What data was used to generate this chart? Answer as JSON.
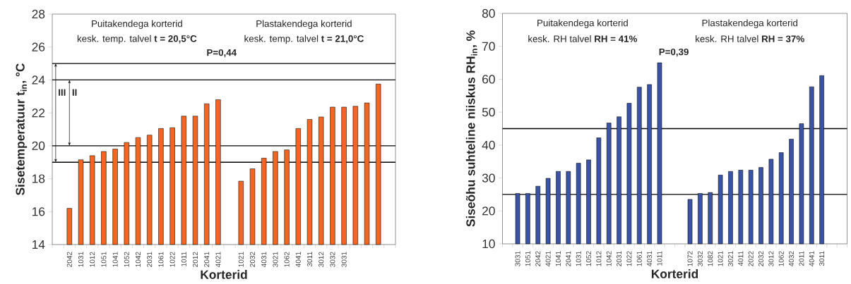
{
  "chart_data": [
    {
      "type": "bar",
      "xlabel": "Korterid",
      "ylabel": "Sisetemperatuur t$_{in}$, °C",
      "color": "#f26522",
      "categories": [
        null,
        "2042",
        "1031",
        "1012",
        "1051",
        "1041",
        "1052",
        "1042",
        "2031",
        "1061",
        "1022",
        "1011",
        "2012",
        "2041",
        "4021",
        null,
        "1021",
        "2032",
        "4031",
        "3021",
        "1062",
        "4041",
        "3011",
        "3012",
        "3032",
        "3031",
        null,
        null,
        null,
        null
      ],
      "values": [
        null,
        16.2,
        19.15,
        19.4,
        19.65,
        19.8,
        20.2,
        20.5,
        20.65,
        21.05,
        21.1,
        21.8,
        21.8,
        22.55,
        22.8,
        null,
        17.85,
        18.6,
        19.25,
        19.65,
        19.75,
        21.05,
        21.6,
        21.75,
        22.35,
        22.35,
        22.4,
        22.6,
        23.75,
        null
      ],
      "ylim": [
        14,
        28
      ],
      "yticks": [
        14,
        16,
        18,
        20,
        22,
        24,
        26,
        28
      ],
      "ref_lines": [
        {
          "axis": "y",
          "value": 25
        },
        {
          "axis": "y",
          "value": 24
        },
        {
          "axis": "y",
          "value": 20
        },
        {
          "axis": "y",
          "value": 19
        }
      ],
      "annotations": [
        "Puitakendega korterid",
        "kesk. temp. talvel **t = 20,5°C**",
        "Plastakendega korterid",
        "kesk. temp. talvel **t = 21,0°C**",
        "P=0,44",
        "III",
        "II"
      ]
    },
    {
      "type": "bar",
      "xlabel": "Korterid",
      "ylabel": "Siseõhu suhteline niiskus RH$_{in}$, %",
      "color": "#3a53a4",
      "categories": [
        null,
        "3031",
        "1051",
        "2042",
        "4021",
        "1041",
        "2041",
        "1031",
        "1052",
        "1012",
        "1042",
        "2031",
        "1022",
        "1061",
        "4031",
        "1011",
        null,
        null,
        "1072",
        "3032",
        "1082",
        "1021",
        "3021",
        "4011",
        "2022",
        "2032",
        "3012",
        "1062",
        "4032",
        "2011",
        "4041",
        "3011",
        null,
        null
      ],
      "values": [
        null,
        25.3,
        25.3,
        27.5,
        29.9,
        32.0,
        32.0,
        34.5,
        35.5,
        42.2,
        46.7,
        48.6,
        52.7,
        57.6,
        58.4,
        65.0,
        null,
        null,
        23.5,
        25.3,
        25.6,
        30.9,
        32.0,
        32.4,
        32.4,
        33.2,
        35.7,
        37.7,
        41.8,
        46.5,
        57.7,
        61.1,
        null,
        null
      ],
      "ylim": [
        10,
        80
      ],
      "yticks": [
        10,
        20,
        30,
        40,
        50,
        60,
        70,
        80
      ],
      "ref_lines": [
        {
          "axis": "y",
          "value": 45
        },
        {
          "axis": "y",
          "value": 25
        }
      ],
      "annotations": [
        "Puitakendega korterid",
        "kesk. RH talvel **RH = 41%**",
        "Plastakendega korterid",
        "kesk. RH talvel **RH = 37%**",
        "P=0,39"
      ]
    }
  ]
}
